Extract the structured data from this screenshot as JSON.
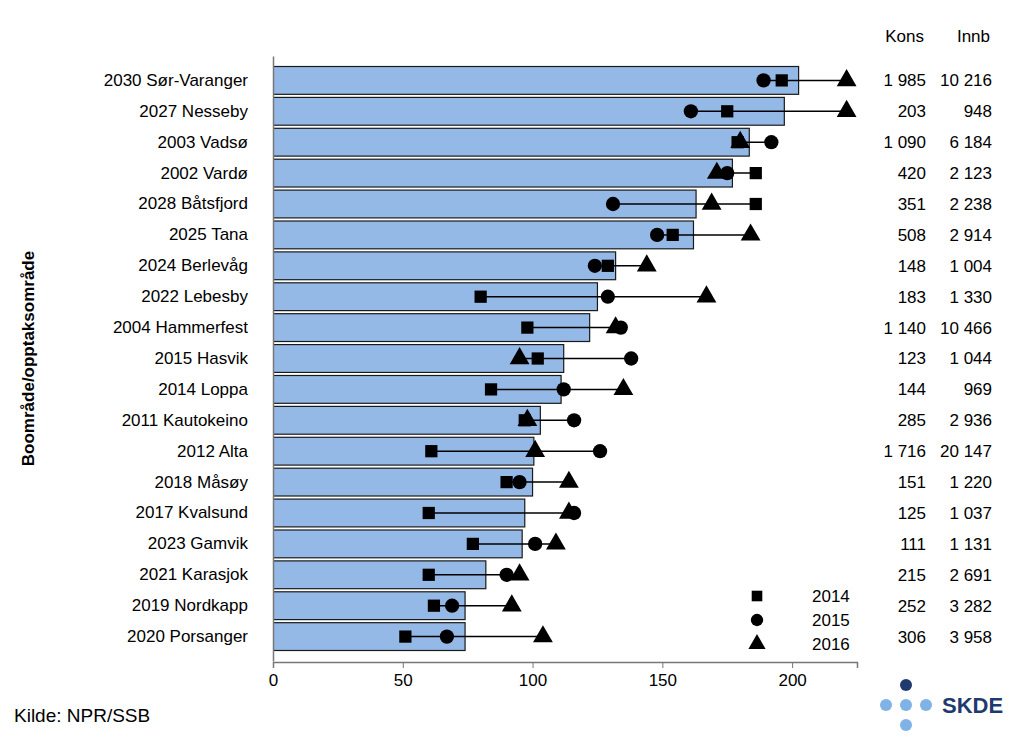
{
  "chart_data": {
    "type": "bar",
    "orientation": "horizontal",
    "y_label": "Boområde/opptaksområde",
    "categories": [
      "2030 Sør-Varanger",
      "2027 Nesseby",
      "2003 Vadsø",
      "2002 Vardø",
      "2028 Båtsfjord",
      "2025 Tana",
      "2024 Berlevåg",
      "2022 Lebesby",
      "2004 Hammerfest",
      "2015 Hasvik",
      "2014 Loppa",
      "2011 Kautokeino",
      "2012 Alta",
      "2018 Måsøy",
      "2017 Kvalsund",
      "2023 Gamvik",
      "2021 Karasjok",
      "2019 Nordkapp",
      "2020 Porsanger"
    ],
    "values": [
      202.5,
      197,
      183.5,
      177,
      163,
      162,
      132,
      125,
      122,
      112,
      111,
      103,
      100.5,
      100,
      97,
      96,
      82,
      74,
      74
    ],
    "color": "#95b9e6",
    "series": [
      {
        "name": "2014",
        "marker": "square",
        "color": "#000000",
        "values": [
          196,
          175,
          179,
          186,
          186,
          154,
          129,
          80,
          98,
          102,
          84,
          97,
          61,
          90,
          60,
          77,
          60,
          62,
          51
        ]
      },
      {
        "name": "2015",
        "marker": "circle",
        "color": "#000000",
        "values": [
          189,
          161,
          192,
          175,
          131,
          148,
          124,
          129,
          134,
          138,
          112,
          116,
          126,
          95,
          116,
          101,
          90,
          69,
          67
        ]
      },
      {
        "name": "2016",
        "marker": "triangle",
        "color": "#000000",
        "values": [
          221,
          221,
          180,
          171,
          169,
          184,
          144,
          167,
          132,
          95,
          135,
          98,
          101,
          114,
          114,
          109,
          95,
          92,
          104
        ]
      }
    ],
    "xlim": [
      0,
      225
    ],
    "xticks": [
      0,
      50,
      100,
      150,
      200
    ],
    "grid": false,
    "legend": "lower right",
    "table": {
      "headers": [
        "Kons",
        "Innb"
      ],
      "rows": [
        [
          "1 985",
          "10 216"
        ],
        [
          "203",
          "948"
        ],
        [
          "1 090",
          "6 184"
        ],
        [
          "420",
          "2 123"
        ],
        [
          "351",
          "2 238"
        ],
        [
          "508",
          "2 914"
        ],
        [
          "148",
          "1 004"
        ],
        [
          "183",
          "1 330"
        ],
        [
          "1 140",
          "10 466"
        ],
        [
          "123",
          "1 044"
        ],
        [
          "144",
          "969"
        ],
        [
          "285",
          "2 936"
        ],
        [
          "1 716",
          "20 147"
        ],
        [
          "151",
          "1 220"
        ],
        [
          "125",
          "1 037"
        ],
        [
          "111",
          "1 131"
        ],
        [
          "215",
          "2 691"
        ],
        [
          "252",
          "3 282"
        ],
        [
          "306",
          "3 958"
        ]
      ]
    },
    "source": "Kilde: NPR/SSB",
    "logo": "SKDE"
  }
}
